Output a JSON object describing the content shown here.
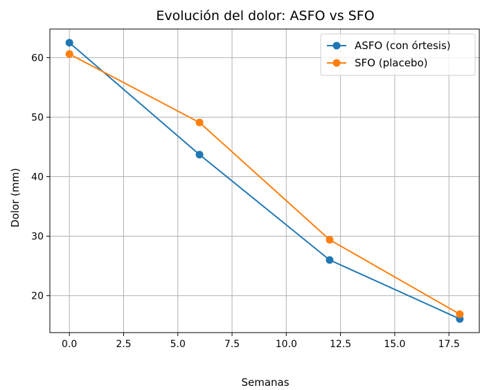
{
  "chart_data": {
    "type": "line",
    "title": "Evolución del dolor: ASFO vs SFO",
    "xlabel": "Semanas",
    "ylabel": "Dolor (mm)",
    "x": [
      0,
      6,
      12,
      18
    ],
    "xlim": [
      -0.9,
      18.9
    ],
    "ylim": [
      13.8,
      64.8
    ],
    "xticks": [
      0,
      2.5,
      5,
      7.5,
      10,
      12.5,
      15,
      17.5
    ],
    "xtick_labels": [
      "0.0",
      "2.5",
      "5.0",
      "7.5",
      "10.0",
      "12.5",
      "15.0",
      "17.5"
    ],
    "yticks": [
      20,
      30,
      40,
      50,
      60
    ],
    "ytick_labels": [
      "20",
      "30",
      "40",
      "50",
      "60"
    ],
    "grid": true,
    "legend_position": "top-right",
    "series": [
      {
        "name": "ASFO (con órtesis)",
        "values": [
          62.5,
          43.7,
          26.0,
          16.1
        ],
        "color": "#1f77b4",
        "marker": "circle"
      },
      {
        "name": "SFO (placebo)",
        "values": [
          60.6,
          49.1,
          29.4,
          16.9
        ],
        "color": "#ff7f0e",
        "marker": "circle"
      }
    ]
  }
}
